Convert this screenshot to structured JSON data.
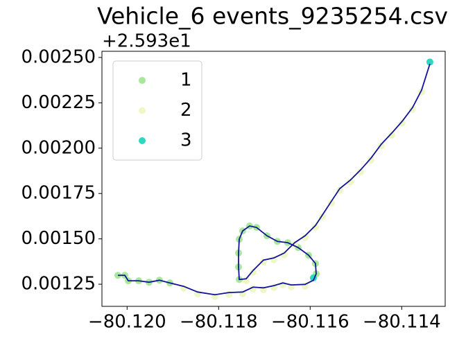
{
  "chart_data": {
    "type": "scatter",
    "title": "Vehicle_6 events_9235254.csv",
    "offset_text": "+2.593e1",
    "legend": "upper left",
    "xlim": [
      -80.12055,
      -80.11305
    ],
    "ylim": [
      0.001128,
      0.002534
    ],
    "xticks": [
      {
        "value": -80.12,
        "label": "−80.120"
      },
      {
        "value": -80.118,
        "label": "−80.118"
      },
      {
        "value": -80.116,
        "label": "−80.116"
      },
      {
        "value": -80.114,
        "label": "−80.114"
      }
    ],
    "yticks": [
      {
        "value": 0.00125,
        "label": "0.00125"
      },
      {
        "value": 0.0015,
        "label": "0.00150"
      },
      {
        "value": 0.00175,
        "label": "0.00175"
      },
      {
        "value": 0.002,
        "label": "0.00200"
      },
      {
        "value": 0.00225,
        "label": "0.00225"
      },
      {
        "value": 0.0025,
        "label": "0.00250"
      }
    ],
    "series": [
      {
        "name": "1",
        "color": "#a8e89a",
        "x": [
          -80.120202,
          -80.12005,
          -80.119974,
          -80.119747,
          -80.11952,
          -80.119293,
          -80.119065,
          -80.115869,
          -80.115884,
          -80.116035,
          -80.116263,
          -80.11649,
          -80.116717,
          -80.116944,
          -80.117172,
          -80.117323,
          -80.117475,
          -80.11755,
          -80.117565,
          -80.117565,
          -80.11755
        ],
        "y": [
          0.001299,
          0.001299,
          0.001269,
          0.001269,
          0.001261,
          0.001272,
          0.001257,
          0.001307,
          0.001364,
          0.00141,
          0.001452,
          0.001479,
          0.001486,
          0.001517,
          0.001563,
          0.001571,
          0.001544,
          0.001498,
          0.001422,
          0.001345,
          0.001276
        ]
      },
      {
        "name": "2",
        "color": "#eef8c6",
        "x": [
          -80.118762,
          -80.118459,
          -80.118081,
          -80.117778,
          -80.117475,
          -80.117247,
          -80.11702,
          -80.116793,
          -80.116596,
          -80.116414,
          -80.116111,
          -80.117399,
          -80.117247,
          -80.11702,
          -80.116793,
          -80.116566,
          -80.116338,
          -80.116111,
          -80.115884,
          -80.115732,
          -80.115535,
          -80.115354,
          -80.115126,
          -80.114899,
          -80.114672,
          -80.114445,
          -80.114217,
          -80.11399,
          -80.113763,
          -80.113566
        ],
        "y": [
          0.001228,
          0.001197,
          0.001182,
          0.001194,
          0.001197,
          0.001224,
          0.00122,
          0.001232,
          0.001247,
          0.001236,
          0.001239,
          0.00127,
          0.001316,
          0.001373,
          0.001385,
          0.001412,
          0.001469,
          0.001507,
          0.001564,
          0.001622,
          0.001698,
          0.001767,
          0.001813,
          0.00187,
          0.001935,
          0.002012,
          0.002073,
          0.002138,
          0.002214,
          0.00231
        ]
      },
      {
        "name": "3",
        "color": "#2ed8c0",
        "x": [
          -80.115929,
          -80.113384
        ],
        "y": [
          0.001285,
          0.002475
        ]
      }
    ],
    "path": {
      "color": "#13139a",
      "x": [
        -80.120202,
        -80.12005,
        -80.119974,
        -80.119747,
        -80.11952,
        -80.119293,
        -80.119065,
        -80.118762,
        -80.118459,
        -80.118081,
        -80.117778,
        -80.117475,
        -80.117247,
        -80.11702,
        -80.116793,
        -80.116596,
        -80.116414,
        -80.116111,
        -80.115929,
        -80.115869,
        -80.115884,
        -80.116035,
        -80.116263,
        -80.11649,
        -80.116717,
        -80.116944,
        -80.117172,
        -80.117323,
        -80.117475,
        -80.11755,
        -80.117565,
        -80.117565,
        -80.11755,
        -80.117399,
        -80.117247,
        -80.11702,
        -80.116793,
        -80.116566,
        -80.116338,
        -80.116111,
        -80.115884,
        -80.115732,
        -80.115535,
        -80.115354,
        -80.115126,
        -80.114899,
        -80.114672,
        -80.114445,
        -80.114217,
        -80.11399,
        -80.113763,
        -80.113566,
        -80.113384
      ],
      "y": [
        0.001299,
        0.001299,
        0.001269,
        0.001269,
        0.001261,
        0.001272,
        0.001257,
        0.001238,
        0.001207,
        0.001192,
        0.001204,
        0.001207,
        0.001234,
        0.00123,
        0.001242,
        0.001257,
        0.001246,
        0.001249,
        0.001272,
        0.001307,
        0.001364,
        0.00141,
        0.001452,
        0.001479,
        0.001486,
        0.001517,
        0.001563,
        0.001571,
        0.001544,
        0.001498,
        0.001422,
        0.001345,
        0.001276,
        0.00128,
        0.001326,
        0.001383,
        0.001395,
        0.001422,
        0.001479,
        0.001517,
        0.001574,
        0.001632,
        0.001708,
        0.001777,
        0.001823,
        0.00188,
        0.001945,
        0.002022,
        0.002083,
        0.002148,
        0.002224,
        0.00232,
        0.002465
      ]
    }
  }
}
